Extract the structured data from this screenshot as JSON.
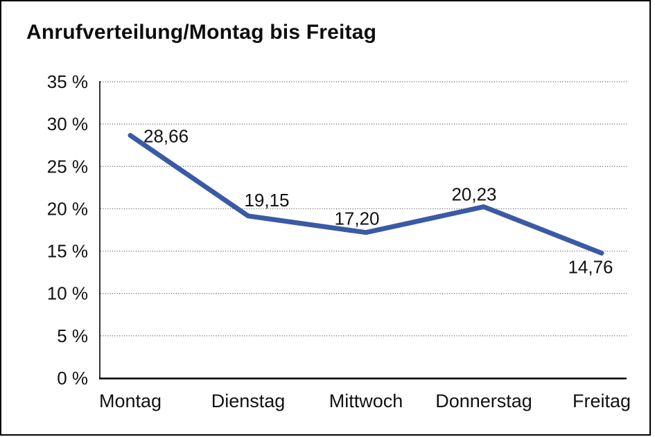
{
  "title": "Anrufverteilung/Montag bis Freitag",
  "colors": {
    "line": "#3A5AA5",
    "axis": "#000000",
    "grid": "#4a4a4a",
    "text": "#111111",
    "frame_border": "#000000",
    "background": "#ffffff"
  },
  "chart_data": {
    "type": "line",
    "title": "Anrufverteilung/Montag bis Freitag",
    "categories": [
      "Montag",
      "Dienstag",
      "Mittwoch",
      "Donnerstag",
      "Freitag"
    ],
    "values": [
      28.66,
      19.15,
      17.2,
      20.23,
      14.76
    ],
    "value_labels": [
      "28,66",
      "19,15",
      "17,20",
      "20,23",
      "14,76"
    ],
    "xlabel": "",
    "ylabel": "",
    "ylim": [
      0,
      35
    ],
    "ytick_step": 5,
    "ytick_labels": [
      "0 %",
      "5 %",
      "10 %",
      "15 %",
      "20 %",
      "25 %",
      "30 %",
      "35 %"
    ],
    "grid": "horizontal-dotted",
    "legend": "none",
    "series": [
      {
        "name": "Anrufverteilung",
        "values": [
          28.66,
          19.15,
          17.2,
          20.23,
          14.76
        ]
      }
    ]
  }
}
